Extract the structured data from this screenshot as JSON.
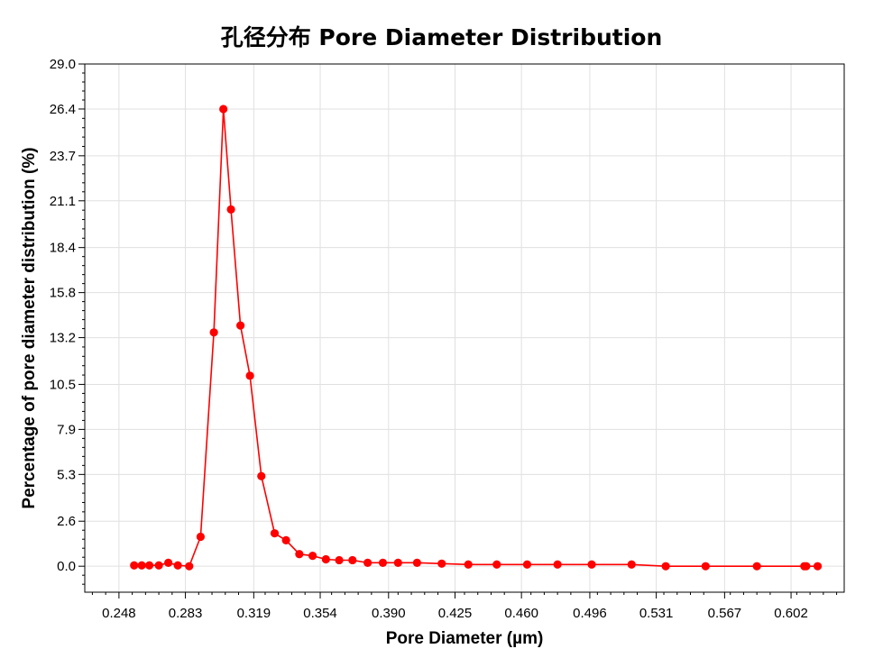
{
  "chart_data": {
    "type": "line",
    "title": "孔径分布 Pore Diameter Distribution",
    "xlabel": "Pore Diameter (µm)",
    "ylabel": "Percentage of pore diameter distribution (%)",
    "xlim": [
      0.23,
      0.63
    ],
    "ylim": [
      -1.5,
      29.0
    ],
    "x_ticks": [
      "0.248",
      "0.283",
      "0.319",
      "0.354",
      "0.390",
      "0.425",
      "0.460",
      "0.496",
      "0.531",
      "0.567",
      "0.602"
    ],
    "y_ticks": [
      "0.0",
      "2.6",
      "5.3",
      "7.9",
      "10.5",
      "13.2",
      "15.8",
      "18.4",
      "21.1",
      "23.7",
      "26.4",
      "29.0"
    ],
    "grid": true,
    "series": [
      {
        "color": "#ff0000",
        "marker": "circle",
        "x": [
          0.256,
          0.26,
          0.264,
          0.269,
          0.274,
          0.279,
          0.285,
          0.291,
          0.298,
          0.303,
          0.307,
          0.312,
          0.317,
          0.323,
          0.33,
          0.336,
          0.343,
          0.35,
          0.357,
          0.364,
          0.371,
          0.379,
          0.387,
          0.395,
          0.405,
          0.418,
          0.432,
          0.447,
          0.463,
          0.479,
          0.497,
          0.518,
          0.536,
          0.557,
          0.584,
          0.609,
          0.61,
          0.616
        ],
        "y": [
          0.05,
          0.05,
          0.05,
          0.05,
          0.2,
          0.05,
          0.0,
          1.7,
          13.5,
          26.4,
          20.6,
          13.9,
          11.0,
          5.2,
          1.9,
          1.5,
          0.7,
          0.6,
          0.4,
          0.35,
          0.35,
          0.2,
          0.2,
          0.2,
          0.2,
          0.15,
          0.1,
          0.1,
          0.1,
          0.1,
          0.1,
          0.1,
          0.0,
          0.0,
          0.0,
          0.0,
          0.0,
          0.0
        ]
      }
    ]
  }
}
